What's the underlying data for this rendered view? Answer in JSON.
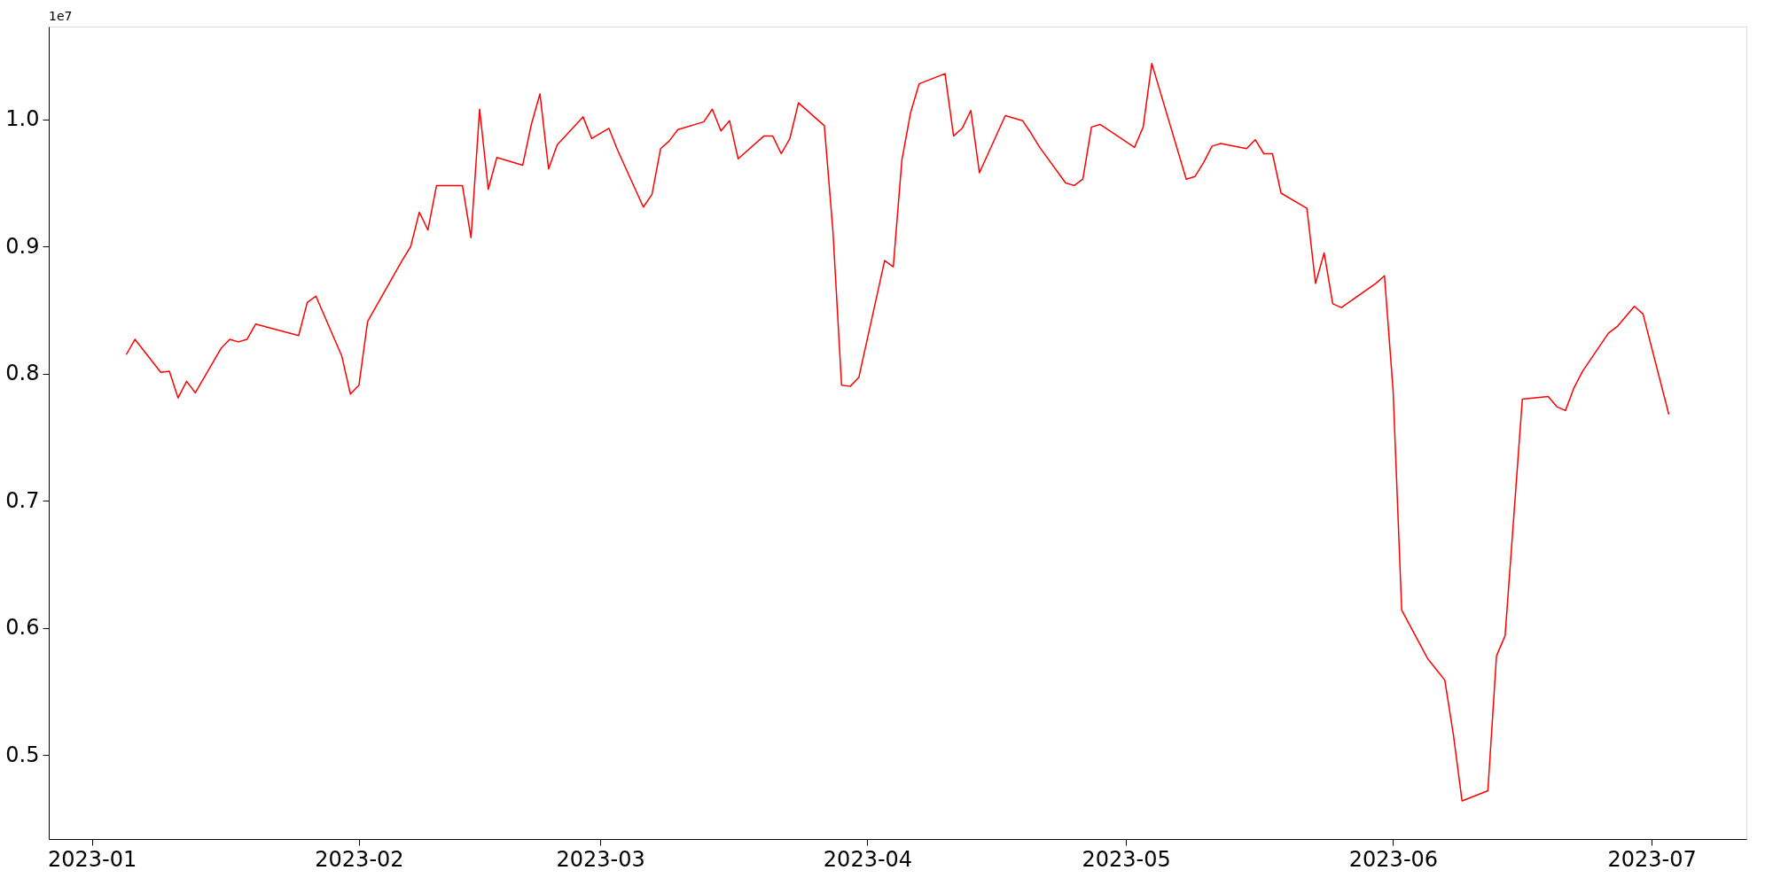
{
  "chart_data": {
    "type": "line",
    "x": [
      "2023-01-05",
      "2023-01-06",
      "2023-01-09",
      "2023-01-10",
      "2023-01-11",
      "2023-01-12",
      "2023-01-13",
      "2023-01-16",
      "2023-01-17",
      "2023-01-18",
      "2023-01-19",
      "2023-01-20",
      "2023-01-25",
      "2023-01-26",
      "2023-01-27",
      "2023-01-30",
      "2023-01-31",
      "2023-02-01",
      "2023-02-02",
      "2023-02-03",
      "2023-02-06",
      "2023-02-07",
      "2023-02-08",
      "2023-02-09",
      "2023-02-10",
      "2023-02-13",
      "2023-02-14",
      "2023-02-15",
      "2023-02-16",
      "2023-02-17",
      "2023-02-20",
      "2023-02-21",
      "2023-02-22",
      "2023-02-23",
      "2023-02-24",
      "2023-02-27",
      "2023-02-28",
      "2023-03-02",
      "2023-03-03",
      "2023-03-06",
      "2023-03-07",
      "2023-03-08",
      "2023-03-09",
      "2023-03-10",
      "2023-03-13",
      "2023-03-14",
      "2023-03-15",
      "2023-03-16",
      "2023-03-17",
      "2023-03-20",
      "2023-03-21",
      "2023-03-22",
      "2023-03-23",
      "2023-03-24",
      "2023-03-27",
      "2023-03-28",
      "2023-03-29",
      "2023-03-30",
      "2023-03-31",
      "2023-04-03",
      "2023-04-04",
      "2023-04-05",
      "2023-04-06",
      "2023-04-07",
      "2023-04-10",
      "2023-04-11",
      "2023-04-12",
      "2023-04-13",
      "2023-04-14",
      "2023-04-17",
      "2023-04-19",
      "2023-04-20",
      "2023-04-21",
      "2023-04-24",
      "2023-04-25",
      "2023-04-26",
      "2023-04-27",
      "2023-04-28",
      "2023-05-02",
      "2023-05-03",
      "2023-05-04",
      "2023-05-08",
      "2023-05-09",
      "2023-05-10",
      "2023-05-11",
      "2023-05-12",
      "2023-05-15",
      "2023-05-16",
      "2023-05-17",
      "2023-05-18",
      "2023-05-19",
      "2023-05-22",
      "2023-05-23",
      "2023-05-24",
      "2023-05-25",
      "2023-05-26",
      "2023-05-30",
      "2023-05-31",
      "2023-06-01",
      "2023-06-02",
      "2023-06-05",
      "2023-06-07",
      "2023-06-08",
      "2023-06-09",
      "2023-06-12",
      "2023-06-13",
      "2023-06-14",
      "2023-06-16",
      "2023-06-19",
      "2023-06-20",
      "2023-06-21",
      "2023-06-22",
      "2023-06-23",
      "2023-06-26",
      "2023-06-27",
      "2023-06-29",
      "2023-06-30",
      "2023-07-03"
    ],
    "series": [
      {
        "color": "#ff0000",
        "values": [
          0.815,
          0.827,
          0.801,
          0.802,
          0.781,
          0.794,
          0.785,
          0.82,
          0.827,
          0.825,
          0.827,
          0.839,
          0.83,
          0.856,
          0.861,
          0.814,
          0.784,
          0.791,
          0.841,
          0.853,
          0.889,
          0.9,
          0.927,
          0.913,
          0.948,
          0.948,
          0.907,
          1.008,
          0.945,
          0.97,
          0.964,
          0.996,
          1.02,
          0.961,
          0.98,
          1.002,
          0.985,
          0.993,
          0.976,
          0.931,
          0.941,
          0.977,
          0.983,
          0.992,
          0.998,
          1.008,
          0.991,
          0.999,
          0.969,
          0.987,
          0.987,
          0.973,
          0.985,
          1.013,
          0.995,
          0.912,
          0.791,
          0.79,
          0.797,
          0.889,
          0.884,
          0.968,
          1.005,
          1.028,
          1.036,
          0.987,
          0.993,
          1.007,
          0.958,
          1.003,
          0.999,
          0.989,
          0.978,
          0.95,
          0.948,
          0.953,
          0.994,
          0.996,
          0.978,
          0.994,
          1.044,
          0.953,
          0.955,
          0.966,
          0.979,
          0.981,
          0.977,
          0.984,
          0.973,
          0.973,
          0.942,
          0.93,
          0.871,
          0.895,
          0.855,
          0.852,
          0.871,
          0.877,
          0.787,
          0.614,
          0.576,
          0.559,
          0.516,
          0.464,
          0.472,
          0.578,
          0.594,
          0.78,
          0.782,
          0.774,
          0.771,
          0.789,
          0.802,
          0.832,
          0.837,
          0.853,
          0.847,
          0.768
        ]
      }
    ],
    "xlim": [
      "2022-12-27",
      "2023-07-12"
    ],
    "xticks": [
      {
        "value": "2023-01-01",
        "label": "2023-01"
      },
      {
        "value": "2023-02-01",
        "label": "2023-02"
      },
      {
        "value": "2023-03-01",
        "label": "2023-03"
      },
      {
        "value": "2023-04-01",
        "label": "2023-04"
      },
      {
        "value": "2023-05-01",
        "label": "2023-05"
      },
      {
        "value": "2023-06-01",
        "label": "2023-06"
      },
      {
        "value": "2023-07-01",
        "label": "2023-07"
      }
    ],
    "ylim": [
      0.434,
      1.073
    ],
    "yticks": [
      0.5,
      0.6,
      0.7,
      0.8,
      0.9,
      {
        "value": 1.0,
        "label": "1.0"
      }
    ],
    "annotations": [
      "1e7"
    ],
    "grid": false,
    "marker": "none",
    "line_style": "solid"
  }
}
